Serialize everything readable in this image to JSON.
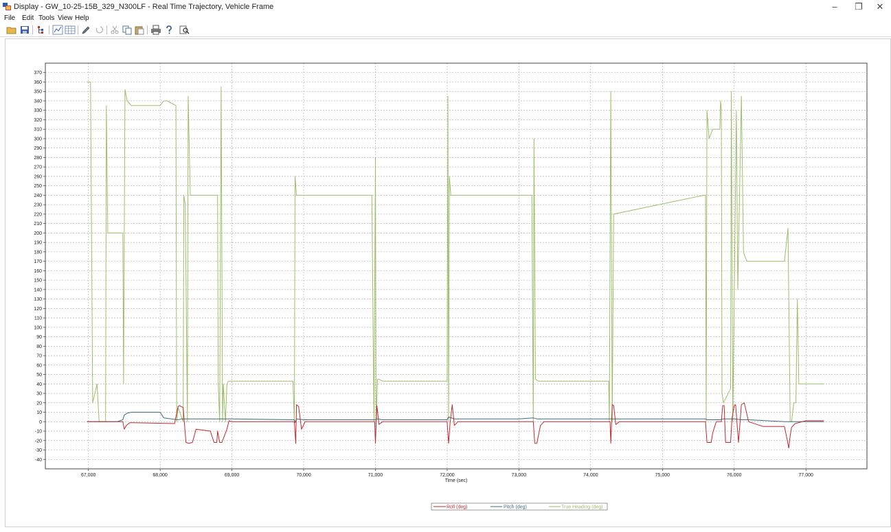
{
  "window": {
    "title": "Display - GW_10-25-15B_329_N300LF - Real Time Trajectory, Vehicle Frame",
    "minimize_glyph": "–",
    "restore_glyph": "❐",
    "close_glyph": "✕"
  },
  "menu": [
    "File",
    "Edit",
    "Tools",
    "View",
    "Help"
  ],
  "toolbar": {
    "buttons": [
      "open-folder-icon",
      "save-icon",
      "tree-icon",
      "graph-icon",
      "table-icon",
      "pencil-icon",
      "undo-icon",
      "cut-icon",
      "copy-icon",
      "paste-icon",
      "print-icon",
      "help-icon",
      "find-icon"
    ]
  },
  "colors": {
    "roll": "#c0282e",
    "pitch": "#3c6a7a",
    "heading": "#9dbd6a",
    "grid": "#a8a8a8",
    "axis": "#333333"
  },
  "chart_data": {
    "type": "line",
    "title": "",
    "xlabel": "Time (sec)",
    "ylabel": "",
    "xlim": [
      66400,
      77850
    ],
    "ylim": [
      -50,
      380
    ],
    "grid": true,
    "legend_position": "bottom-center",
    "x_ticks": [
      67000,
      68000,
      69000,
      70000,
      71000,
      72000,
      73000,
      74000,
      75000,
      76000,
      77000
    ],
    "x_tick_labels": [
      "67,000",
      "68,000",
      "69,000",
      "70,000",
      "71,000",
      "72,000",
      "73,000",
      "74,000",
      "75,000",
      "76,000",
      "77,000"
    ],
    "y_ticks": [
      370,
      360,
      350,
      340,
      330,
      320,
      310,
      300,
      290,
      280,
      270,
      260,
      250,
      240,
      230,
      220,
      210,
      200,
      190,
      180,
      170,
      160,
      150,
      140,
      130,
      120,
      110,
      100,
      90,
      80,
      70,
      60,
      50,
      40,
      30,
      20,
      10,
      0,
      -10,
      -20,
      -30,
      -40
    ],
    "series": [
      {
        "name": "Roll (deg)",
        "color": "#c0282e",
        "x": [
          66980,
          67300,
          67480,
          67500,
          67530,
          67560,
          67580,
          67620,
          68200,
          68250,
          68270,
          68320,
          68360,
          68400,
          68450,
          68500,
          68700,
          68750,
          68790,
          68800,
          68830,
          68860,
          68930,
          68960,
          69000,
          69870,
          69890,
          69900,
          69930,
          69970,
          70020,
          70990,
          71000,
          71020,
          71050,
          71100,
          72000,
          72020,
          72040,
          72070,
          72100,
          72150,
          73200,
          73220,
          73250,
          73300,
          73350,
          74270,
          74280,
          74300,
          74320,
          74350,
          74400,
          75600,
          75620,
          75650,
          75680,
          75700,
          75750,
          75820,
          75840,
          75860,
          75880,
          75950,
          75970,
          76000,
          76020,
          76060,
          76100,
          76140,
          76200,
          76400,
          76700,
          76740,
          76760,
          76780,
          76800,
          76850,
          77000,
          77250
        ],
        "y": [
          0,
          0,
          0,
          -8,
          -4,
          -2,
          -1,
          -1,
          -2,
          16,
          17,
          15,
          -22,
          -23,
          -22,
          -8,
          -10,
          -22,
          -22,
          -10,
          -22,
          -22,
          -8,
          1,
          0,
          0,
          -23,
          18,
          16,
          -8,
          0,
          0,
          -23,
          17,
          -3,
          0,
          0,
          -23,
          -2,
          18,
          -4,
          0,
          0,
          -23,
          -23,
          -4,
          0,
          0,
          -23,
          18,
          17,
          -3,
          0,
          0,
          -22,
          -22,
          -22,
          -12,
          0,
          0,
          17,
          17,
          -22,
          -22,
          4,
          17,
          18,
          -22,
          18,
          20,
          0,
          -5,
          -5,
          -20,
          -28,
          -15,
          -6,
          -2,
          1,
          1
        ]
      },
      {
        "name": "Pitch (deg)",
        "color": "#3c6a7a",
        "x": [
          66980,
          67400,
          67480,
          67500,
          67540,
          67600,
          68000,
          68050,
          68250,
          68300,
          69000,
          69870,
          69880,
          69900,
          70000,
          71000,
          71020,
          71100,
          72000,
          72020,
          72100,
          73000,
          73200,
          73250,
          74250,
          74300,
          75600,
          75620,
          75800,
          75850,
          76000,
          76100,
          76200,
          76700,
          76800,
          77250
        ],
        "y": [
          0,
          0,
          2,
          7,
          9,
          10,
          10,
          4,
          2,
          3,
          3,
          2,
          -1,
          3,
          2,
          2,
          3,
          2,
          2,
          5,
          3,
          3,
          4,
          3,
          3,
          3,
          3,
          2,
          2,
          3,
          3,
          2,
          2,
          0,
          0,
          0
        ]
      },
      {
        "name": "True Heading (deg)",
        "color": "#9dbd6a",
        "x": [
          66980,
          67030,
          67060,
          67120,
          67150,
          67180,
          67240,
          67250,
          67270,
          67480,
          67490,
          67510,
          67540,
          67600,
          68000,
          68050,
          68100,
          68220,
          68230,
          68250,
          68320,
          68330,
          68350,
          68380,
          68390,
          68420,
          68450,
          68800,
          68810,
          68830,
          68850,
          68870,
          68880,
          68910,
          68930,
          68950,
          69850,
          69870,
          69880,
          69900,
          70950,
          70980,
          71000,
          71010,
          71030,
          71050,
          71100,
          72000,
          72010,
          72020,
          72030,
          72050,
          72100,
          73180,
          73200,
          73210,
          73230,
          73270,
          74250,
          74260,
          74280,
          74300,
          74320,
          75580,
          75600,
          75610,
          75620,
          75650,
          75700,
          75800,
          75810,
          75820,
          75830,
          75850,
          75950,
          75960,
          75980,
          76030,
          76050,
          76100,
          76130,
          76150,
          76180,
          76200,
          76700,
          76750,
          76780,
          76800,
          76830,
          76860,
          76880,
          76900,
          77000,
          77250
        ],
        "y": [
          360,
          360,
          20,
          40,
          0,
          0,
          0,
          335,
          200,
          200,
          40,
          352,
          340,
          335,
          335,
          340,
          340,
          335,
          0,
          15,
          0,
          240,
          230,
          0,
          345,
          240,
          240,
          240,
          40,
          0,
          355,
          0,
          40,
          0,
          40,
          43,
          43,
          0,
          260,
          240,
          240,
          0,
          280,
          0,
          45,
          45,
          43,
          43,
          345,
          0,
          260,
          240,
          240,
          240,
          0,
          300,
          45,
          43,
          43,
          0,
          350,
          0,
          220,
          240,
          240,
          0,
          330,
          300,
          310,
          310,
          340,
          330,
          30,
          20,
          35,
          350,
          0,
          330,
          140,
          345,
          180,
          175,
          170,
          170,
          170,
          205,
          0,
          0,
          20,
          20,
          130,
          40,
          40,
          40
        ]
      }
    ]
  }
}
